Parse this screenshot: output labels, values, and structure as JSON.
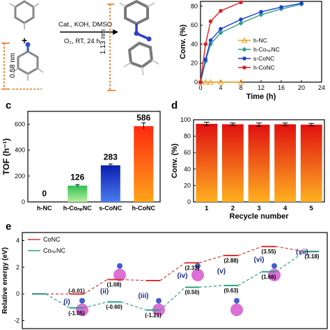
{
  "panel_a": {
    "reaction_conditions": [
      "Cat., KOH, DMSO",
      "O₂, RT, 24 h"
    ],
    "plus_sign": "+",
    "dim_left": "0.58 nm",
    "dim_right": "1.13 nm"
  },
  "chart_data": [
    {
      "id": "b",
      "type": "line",
      "title": "",
      "xlabel": "Time (h)",
      "ylabel": "Conv. (%)",
      "xlim": [
        0,
        24
      ],
      "ylim": [
        0,
        85
      ],
      "xticks": [
        0,
        4,
        8,
        12,
        16,
        20,
        24
      ],
      "yticks": [
        0,
        20,
        40,
        60,
        80
      ],
      "legend_position": "bottom-right",
      "series": [
        {
          "name": "h-NC",
          "color": "#f0a020",
          "marker": "triangle",
          "x": [
            0,
            1,
            2,
            4,
            8
          ],
          "y": [
            0,
            0,
            0,
            0,
            0
          ]
        },
        {
          "name": "h-CoₙₚNC",
          "color": "#2e9e8e",
          "marker": "diamond",
          "x": [
            0,
            1,
            2,
            4,
            8,
            12,
            16,
            20
          ],
          "y": [
            0,
            22,
            40,
            52,
            62,
            71,
            77,
            82
          ]
        },
        {
          "name": "s-CoNC",
          "color": "#1f3fd0",
          "marker": "circle",
          "x": [
            0,
            1,
            2,
            4,
            8,
            12,
            16,
            20
          ],
          "y": [
            0,
            24,
            44,
            56,
            66,
            74,
            79,
            83
          ]
        },
        {
          "name": "h-CoNC",
          "color": "#e02020",
          "marker": "circle",
          "x": [
            0,
            1,
            2,
            4,
            8
          ],
          "y": [
            0,
            40,
            64,
            75,
            84
          ]
        }
      ]
    },
    {
      "id": "c",
      "type": "bar",
      "xlabel": "",
      "ylabel": "TOF (h⁻¹)",
      "ylim": [
        0,
        700
      ],
      "yticks": [
        0,
        200,
        400,
        600
      ],
      "categories": [
        "h-NC",
        "h-CoₙₚNC",
        "s-CoNC",
        "h-CoNC"
      ],
      "values": [
        0,
        126,
        283,
        586
      ],
      "errors": [
        0,
        8,
        10,
        25
      ],
      "data_labels": [
        "0",
        "126",
        "283",
        "586"
      ],
      "colors": [
        "#888888",
        "#3cc85a",
        "#1434c8",
        "#f07010"
      ]
    },
    {
      "id": "d",
      "type": "bar",
      "xlabel": "Recycle number",
      "ylabel": "Conv. (%)",
      "ylim": [
        0,
        100
      ],
      "yticks": [
        0,
        20,
        40,
        60,
        80,
        100
      ],
      "categories": [
        "1",
        "2",
        "3",
        "4",
        "5"
      ],
      "values": [
        95,
        94.5,
        94,
        94.5,
        94
      ],
      "errors": [
        2,
        1.5,
        2,
        1.5,
        1.5
      ],
      "colors": [
        "#e83010"
      ]
    },
    {
      "id": "e",
      "type": "line",
      "ylabel": "Relative energy (eV)",
      "ylim": [
        -2.6,
        4.6
      ],
      "yticks": [
        -2,
        0,
        2,
        4
      ],
      "series": [
        {
          "name": "CoNC",
          "color": "#e03030",
          "values": [
            0,
            -0.01,
            1.08,
            1.0,
            2.33,
            2.88,
            3.55,
            3.18
          ]
        },
        {
          "name": "CoₙₚNC",
          "color": "#2aa088",
          "values": [
            0,
            -1.05,
            -0.6,
            -1.21,
            0.5,
            0.63,
            1.66,
            3.18
          ]
        }
      ],
      "step_labels": [
        "(i)",
        "(ii)",
        "(iii)",
        "(iv)",
        "(v)",
        "(vi)",
        "(vii)"
      ],
      "annotations_conc": [
        "(-0.01)",
        "(1.08)",
        "(2.33)",
        "(2.88)",
        "(3.55)",
        "(3.18)"
      ],
      "annotations_conp": [
        "(-1.05)",
        "(-0.60)",
        "(-1.21)",
        "(0.50)",
        "(0.63)",
        "(1.66)"
      ]
    }
  ],
  "panel_labels": {
    "c": "c",
    "d": "d",
    "e": "e"
  },
  "colors": {
    "gradient_top": "#e01010",
    "gradient_bottom": "#ffb020"
  }
}
